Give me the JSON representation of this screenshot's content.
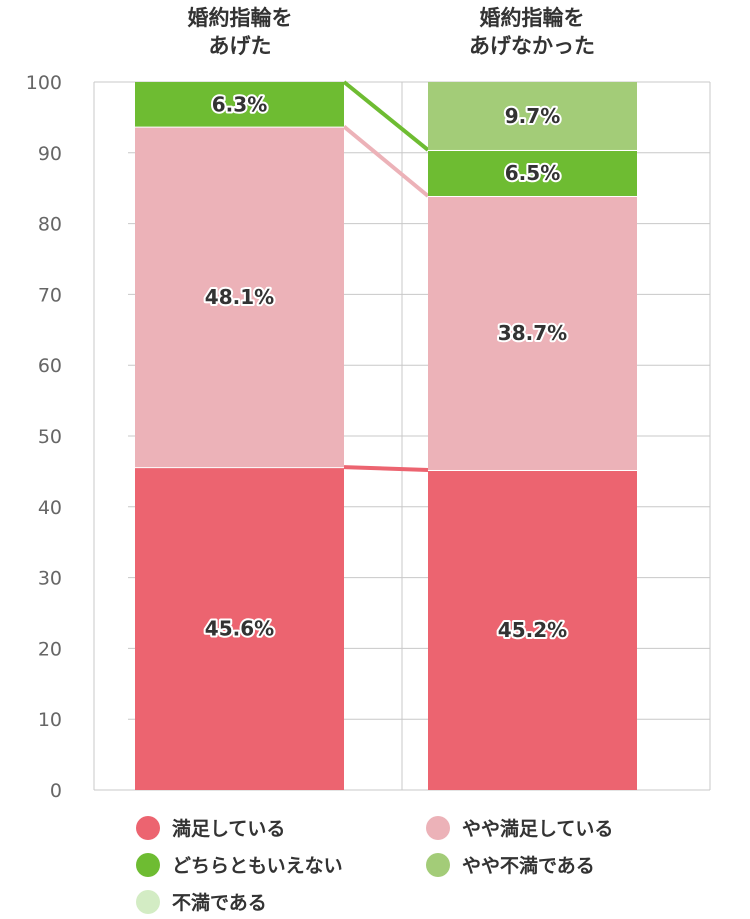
{
  "chart_data": {
    "type": "bar",
    "stacked": true,
    "categories": [
      "婚約指輪を\nあげた",
      "婚約指輪を\nあげなかった"
    ],
    "ylim": [
      0,
      100
    ],
    "yticks": [
      0,
      10,
      20,
      30,
      40,
      50,
      60,
      70,
      80,
      90,
      100
    ],
    "grid": true,
    "series": [
      {
        "name": "満足している",
        "color": "#ec6470",
        "values": [
          45.6,
          45.2
        ],
        "labels": [
          "45.6%",
          "45.2%"
        ]
      },
      {
        "name": "やや満足している",
        "color": "#ecb2b8",
        "values": [
          48.1,
          38.7
        ],
        "labels": [
          "48.1%",
          "38.7%"
        ]
      },
      {
        "name": "どちらともいえない",
        "color": "#6ebc32",
        "values": [
          6.3,
          6.5
        ],
        "labels": [
          "6.3%",
          "6.5%"
        ]
      },
      {
        "name": "やや不満である",
        "color": "#a3cc78",
        "values": [
          0,
          9.7
        ],
        "labels": [
          "",
          "9.7%"
        ]
      },
      {
        "name": "不満である",
        "color": "#d3ecc4",
        "values": [
          0,
          0
        ],
        "labels": [
          "",
          ""
        ]
      }
    ],
    "legend_position": "bottom"
  }
}
